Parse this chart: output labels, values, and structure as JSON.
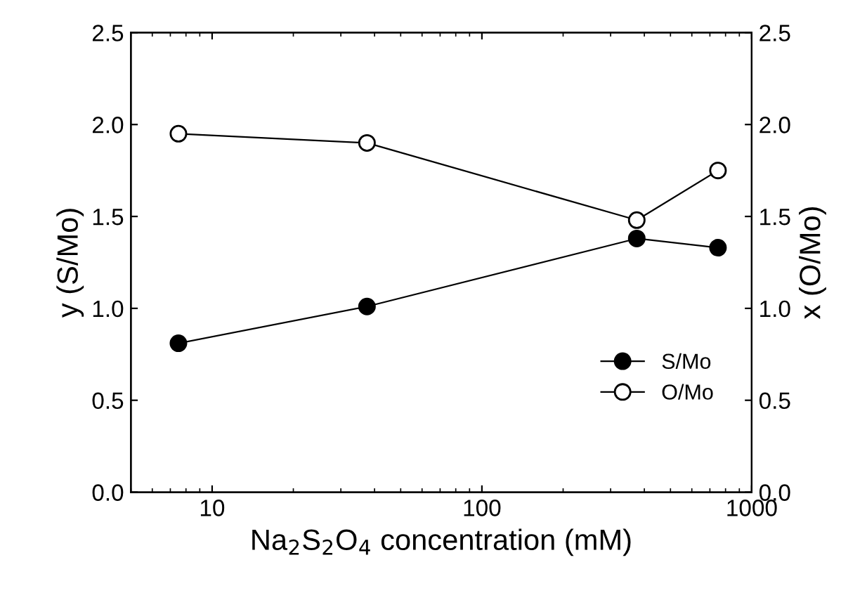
{
  "chart_data": {
    "type": "line",
    "xlabel": "Na$_{2}$S$_{2}$O$_{4}$ concentration (mM)",
    "ylabel": "y (S/Mo)",
    "y2label": "x (O/Mo)",
    "x": [
      7.5,
      37.5,
      375,
      750
    ],
    "log": "x",
    "xlim": [
      5,
      1000
    ],
    "xticks": [
      10,
      100,
      1000
    ],
    "ylim": [
      0,
      2.5
    ],
    "yticks": [
      {
        "value": 0,
        "label": "0.0"
      },
      {
        "value": 0.5,
        "label": "0.5"
      },
      {
        "value": 1,
        "label": "1.0"
      },
      {
        "value": 1.5,
        "label": "1.5"
      },
      {
        "value": 2,
        "label": "2.0"
      },
      {
        "value": 2.5,
        "label": "2.5"
      }
    ],
    "y2lim": [
      0,
      2.5
    ],
    "y2ticks": [
      {
        "value": 0,
        "label": "0.0"
      },
      {
        "value": 0.5,
        "label": "0.5"
      },
      {
        "value": 1,
        "label": "1.0"
      },
      {
        "value": 1.5,
        "label": "1.5"
      },
      {
        "value": 2,
        "label": "2.0"
      },
      {
        "value": 2.5,
        "label": "2.5"
      }
    ],
    "marker": "circle",
    "line_style": "solid",
    "grid": false,
    "legend": "bottom right",
    "series": [
      {
        "name": "S/Mo",
        "color": "#000000",
        "values": [
          0.81,
          1.01,
          1.38,
          1.33
        ]
      },
      {
        "name": "O/Mo",
        "color": "#000000",
        "axis": "y2",
        "values": [
          1.95,
          1.9,
          1.48,
          1.75
        ]
      }
    ]
  }
}
